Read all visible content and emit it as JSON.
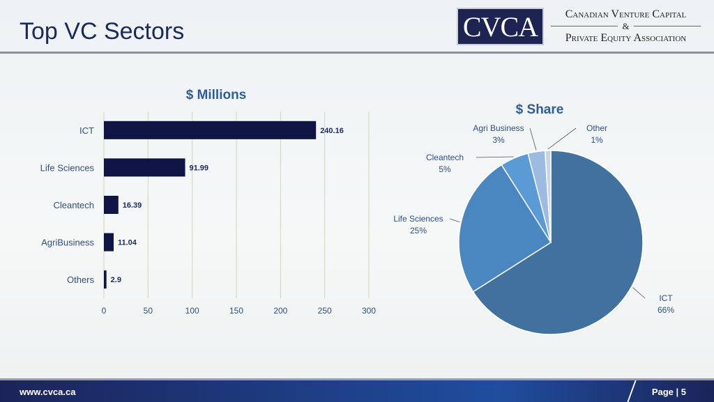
{
  "slide": {
    "title": "Top VC Sectors",
    "footer_url": "www.cvca.ca",
    "page": "Page | 5"
  },
  "logo": {
    "mark": "CVCA",
    "line1": "Canadian Venture Capital",
    "amp": "&",
    "line2": "Private Equity Association"
  },
  "chart_data": [
    {
      "type": "bar",
      "orientation": "horizontal",
      "title": "$ Millions",
      "categories": [
        "ICT",
        "Life Sciences",
        "Cleantech",
        "AgriBusiness",
        "Others"
      ],
      "values": [
        240.16,
        91.99,
        16.39,
        11.04,
        2.9
      ],
      "value_labels": [
        "240.16",
        "91.99",
        "16.39",
        "11.04",
        "2.9"
      ],
      "xlim": [
        0,
        300
      ],
      "xticks": [
        0,
        50,
        100,
        150,
        200,
        250,
        300
      ],
      "grid": true,
      "color": "#0f1445"
    },
    {
      "type": "pie",
      "title": "$ Share",
      "categories": [
        "ICT",
        "Life Sciences",
        "Cleantech",
        "Agri Business",
        "Other"
      ],
      "values": [
        66,
        25,
        5,
        3,
        1
      ],
      "labels": [
        "66%",
        "25%",
        "5%",
        "3%",
        "1%"
      ],
      "colors": [
        "#41729f",
        "#4a87c0",
        "#5b9bd5",
        "#9dbbe0",
        "#c6d6ea"
      ]
    }
  ]
}
